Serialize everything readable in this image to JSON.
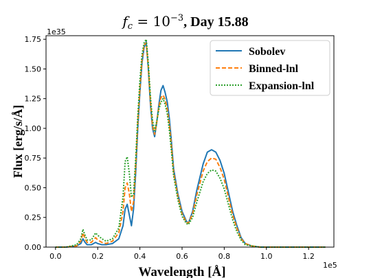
{
  "chart_data": {
    "type": "line",
    "title_prefix": "f",
    "title_sub": "c",
    "title_eq": " = 10",
    "title_exp": "−3",
    "title_suffix": ", Day 15.88",
    "xlabel": "Wavelength [Å]",
    "ylabel": "Flux [erg/s/Å]",
    "x_multiplier": "1e5",
    "y_multiplier": "1e35",
    "xlim": [
      -0.045,
      1.32
    ],
    "ylim": [
      0.0,
      1.78
    ],
    "xticks": [
      {
        "value": 0.0,
        "label": "0.0"
      },
      {
        "value": 0.2,
        "label": "0.2"
      },
      {
        "value": 0.4,
        "label": "0.4"
      },
      {
        "value": 0.6,
        "label": "0.6"
      },
      {
        "value": 0.8,
        "label": "0.8"
      },
      {
        "value": 1.0,
        "label": "1.0"
      },
      {
        "value": 1.2,
        "label": "1.2"
      }
    ],
    "yticks": [
      {
        "value": 0.0,
        "label": "0.00"
      },
      {
        "value": 0.25,
        "label": "0.25"
      },
      {
        "value": 0.5,
        "label": "0.50"
      },
      {
        "value": 0.75,
        "label": "0.75"
      },
      {
        "value": 1.0,
        "label": "1.00"
      },
      {
        "value": 1.25,
        "label": "1.25"
      },
      {
        "value": 1.5,
        "label": "1.50"
      },
      {
        "value": 1.75,
        "label": "1.75"
      }
    ],
    "legend_position": "top-right",
    "grid": false,
    "series": [
      {
        "name": "Sobolev",
        "color": "#1f77b4",
        "dash": "solid",
        "x": [
          0.0,
          0.05,
          0.1,
          0.12,
          0.13,
          0.14,
          0.15,
          0.17,
          0.19,
          0.2,
          0.22,
          0.24,
          0.27,
          0.3,
          0.32,
          0.33,
          0.34,
          0.35,
          0.36,
          0.37,
          0.38,
          0.39,
          0.4,
          0.41,
          0.42,
          0.43,
          0.44,
          0.45,
          0.46,
          0.47,
          0.48,
          0.49,
          0.5,
          0.51,
          0.52,
          0.53,
          0.54,
          0.55,
          0.56,
          0.58,
          0.6,
          0.62,
          0.63,
          0.65,
          0.67,
          0.7,
          0.72,
          0.74,
          0.76,
          0.78,
          0.8,
          0.82,
          0.84,
          0.86,
          0.88,
          0.9,
          0.93,
          0.97,
          1.0,
          1.05,
          1.1,
          1.2,
          1.28
        ],
        "y": [
          0.0,
          0.0,
          0.01,
          0.03,
          0.07,
          0.04,
          0.02,
          0.02,
          0.04,
          0.03,
          0.02,
          0.02,
          0.03,
          0.07,
          0.18,
          0.32,
          0.36,
          0.27,
          0.18,
          0.32,
          0.62,
          1.0,
          1.3,
          1.55,
          1.68,
          1.73,
          1.5,
          1.2,
          1.0,
          0.93,
          1.05,
          1.2,
          1.32,
          1.36,
          1.3,
          1.22,
          1.08,
          0.88,
          0.66,
          0.45,
          0.3,
          0.22,
          0.2,
          0.3,
          0.48,
          0.7,
          0.8,
          0.82,
          0.8,
          0.73,
          0.62,
          0.46,
          0.3,
          0.18,
          0.08,
          0.03,
          0.01,
          0.0,
          0.0,
          0.0,
          0.0,
          0.0,
          0.0
        ]
      },
      {
        "name": "Binned-lnl",
        "color": "#ff7f0e",
        "dash": "6,3",
        "x": [
          0.0,
          0.05,
          0.1,
          0.12,
          0.13,
          0.14,
          0.15,
          0.17,
          0.19,
          0.2,
          0.22,
          0.24,
          0.27,
          0.3,
          0.32,
          0.33,
          0.34,
          0.35,
          0.36,
          0.37,
          0.38,
          0.39,
          0.4,
          0.41,
          0.42,
          0.43,
          0.44,
          0.45,
          0.46,
          0.47,
          0.48,
          0.49,
          0.5,
          0.51,
          0.52,
          0.53,
          0.54,
          0.55,
          0.56,
          0.58,
          0.6,
          0.62,
          0.63,
          0.65,
          0.67,
          0.7,
          0.72,
          0.74,
          0.76,
          0.78,
          0.8,
          0.82,
          0.84,
          0.86,
          0.88,
          0.9,
          0.93,
          0.97,
          1.0,
          1.05,
          1.1,
          1.2,
          1.28
        ],
        "y": [
          0.0,
          0.0,
          0.01,
          0.05,
          0.12,
          0.07,
          0.04,
          0.04,
          0.08,
          0.06,
          0.04,
          0.03,
          0.05,
          0.12,
          0.3,
          0.5,
          0.54,
          0.45,
          0.3,
          0.38,
          0.68,
          1.05,
          1.33,
          1.58,
          1.7,
          1.72,
          1.52,
          1.23,
          1.02,
          0.95,
          1.05,
          1.18,
          1.26,
          1.28,
          1.24,
          1.16,
          1.03,
          0.84,
          0.63,
          0.43,
          0.28,
          0.21,
          0.2,
          0.28,
          0.44,
          0.64,
          0.72,
          0.75,
          0.74,
          0.67,
          0.57,
          0.42,
          0.27,
          0.16,
          0.07,
          0.03,
          0.01,
          0.0,
          0.0,
          0.0,
          0.0,
          0.0,
          0.0
        ]
      },
      {
        "name": "Expansion-lnl",
        "color": "#2ca02c",
        "dash": "2,2",
        "x": [
          0.0,
          0.05,
          0.1,
          0.12,
          0.13,
          0.14,
          0.15,
          0.17,
          0.19,
          0.2,
          0.22,
          0.24,
          0.27,
          0.3,
          0.32,
          0.33,
          0.34,
          0.35,
          0.36,
          0.37,
          0.38,
          0.39,
          0.4,
          0.41,
          0.42,
          0.43,
          0.44,
          0.45,
          0.46,
          0.47,
          0.48,
          0.49,
          0.5,
          0.51,
          0.52,
          0.53,
          0.54,
          0.55,
          0.56,
          0.58,
          0.6,
          0.62,
          0.63,
          0.65,
          0.67,
          0.7,
          0.72,
          0.74,
          0.76,
          0.78,
          0.8,
          0.82,
          0.84,
          0.86,
          0.88,
          0.9,
          0.93,
          0.97,
          1.0,
          1.05,
          1.1,
          1.2,
          1.28
        ],
        "y": [
          0.0,
          0.0,
          0.02,
          0.07,
          0.15,
          0.1,
          0.06,
          0.06,
          0.12,
          0.1,
          0.07,
          0.05,
          0.07,
          0.16,
          0.42,
          0.72,
          0.76,
          0.62,
          0.42,
          0.45,
          0.74,
          1.1,
          1.4,
          1.62,
          1.72,
          1.75,
          1.55,
          1.27,
          1.07,
          0.98,
          1.06,
          1.16,
          1.22,
          1.25,
          1.2,
          1.12,
          0.98,
          0.8,
          0.6,
          0.4,
          0.26,
          0.2,
          0.19,
          0.25,
          0.38,
          0.55,
          0.62,
          0.65,
          0.64,
          0.58,
          0.49,
          0.36,
          0.23,
          0.13,
          0.06,
          0.02,
          0.01,
          0.0,
          0.0,
          0.0,
          0.0,
          0.0,
          0.0
        ]
      }
    ]
  }
}
